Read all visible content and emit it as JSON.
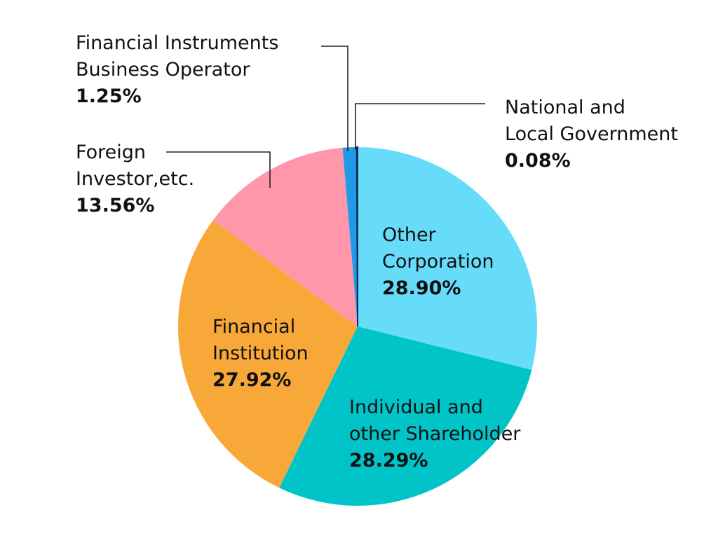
{
  "chart_data": {
    "type": "pie",
    "title": "",
    "slices": [
      {
        "name_lines": [
          "Other",
          "Corporation"
        ],
        "percent_label": "28.90%",
        "value": 28.9,
        "color": "#66dcfa"
      },
      {
        "name_lines": [
          "Individual and",
          "other Shareholder"
        ],
        "percent_label": "28.29%",
        "value": 28.29,
        "color": "#00c4c8"
      },
      {
        "name_lines": [
          "Financial",
          "Institution"
        ],
        "percent_label": "27.92%",
        "value": 27.92,
        "color": "#f8a838"
      },
      {
        "name_lines": [
          "Foreign",
          "Investor,etc."
        ],
        "percent_label": "13.56%",
        "value": 13.56,
        "color": "#ff96aa"
      },
      {
        "name_lines": [
          "Financial Instruments",
          "Business Operator"
        ],
        "percent_label": "1.25%",
        "value": 1.25,
        "color": "#1e9be6"
      },
      {
        "name_lines": [
          "National and",
          "Local Government"
        ],
        "percent_label": "0.08%",
        "value": 0.08,
        "color": "#0b2d5a"
      }
    ]
  }
}
